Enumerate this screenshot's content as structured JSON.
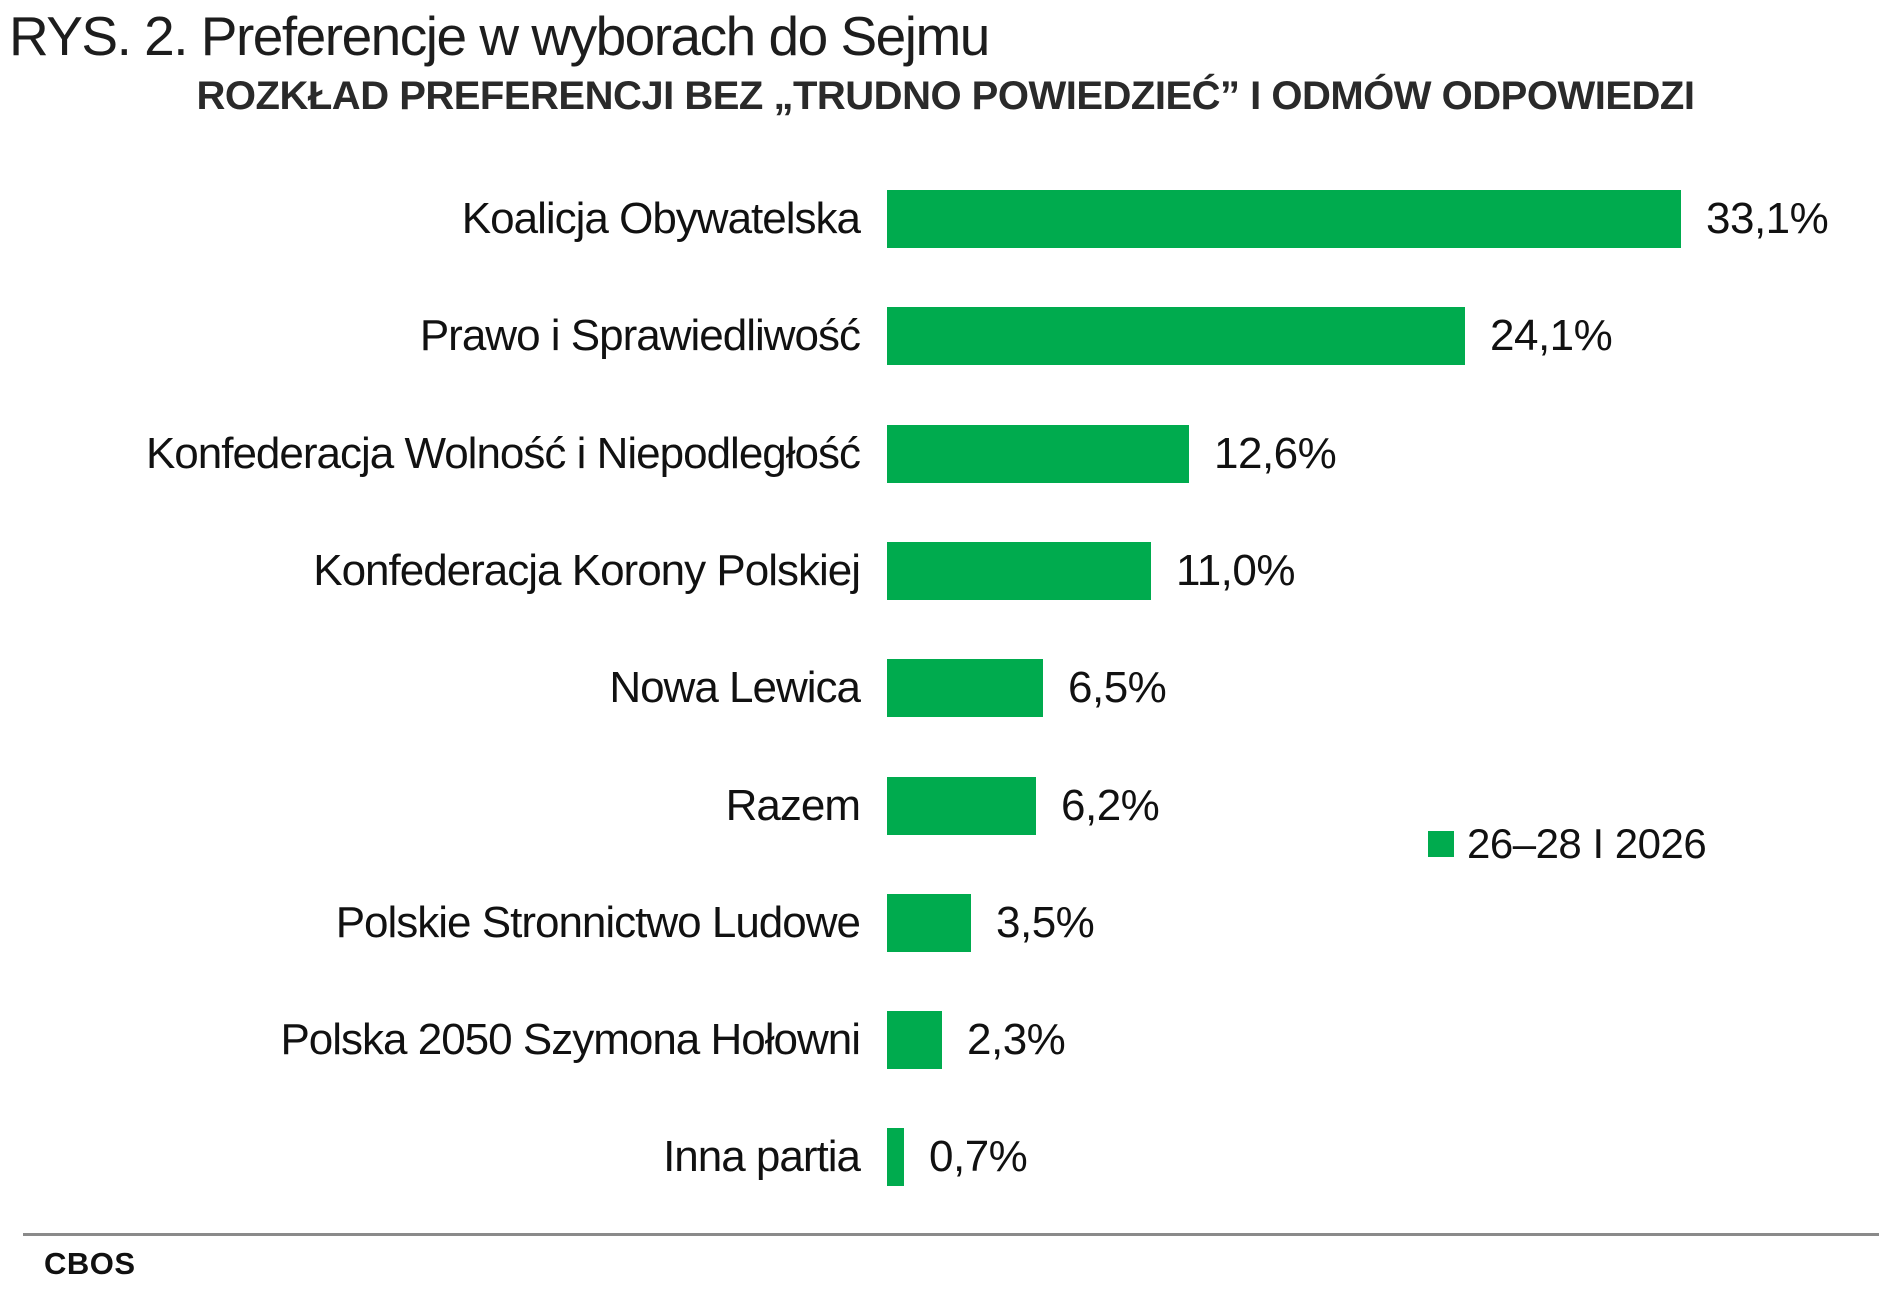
{
  "header": {
    "title": "RYS. 2. Preferencje w wyborach do Sejmu",
    "subtitle": "ROZKŁAD PREFERENCJI BEZ „TRUDNO POWIEDZIEĆ” I ODMÓW ODPOWIEDZI"
  },
  "legend": {
    "label": "26–28 I 2026",
    "color": "#00AB4E"
  },
  "footer": {
    "source": "CBOS"
  },
  "chart_data": {
    "type": "bar",
    "orientation": "horizontal",
    "title": "RYS. 2. Preferencje w wyborach do Sejmu",
    "subtitle": "ROZKŁAD PREFERENCJI BEZ „TRUDNO POWIEDZIEĆ” I ODMÓW ODPOWIEDZI",
    "series_name": "26–28 I 2026",
    "unit": "%",
    "bar_color": "#00AB4E",
    "xlim": [
      0,
      35
    ],
    "grid": false,
    "legend_position": "right-middle",
    "categories": [
      "Koalicja Obywatelska",
      "Prawo i Sprawiedliwość",
      "Konfederacja Wolność i Niepodległość",
      "Konfederacja Korony Polskiej",
      "Nowa Lewica",
      "Razem",
      "Polskie Stronnictwo Ludowe",
      "Polska 2050 Szymona Hołowni",
      "Inna partia"
    ],
    "values": [
      33.1,
      24.1,
      12.6,
      11.0,
      6.5,
      6.2,
      3.5,
      2.3,
      0.7
    ],
    "value_labels": [
      "33,1%",
      "24,1%",
      "12,6%",
      "11,0%",
      "6,5%",
      "6,2%",
      "3,5%",
      "2,3%",
      "0,7%"
    ]
  }
}
